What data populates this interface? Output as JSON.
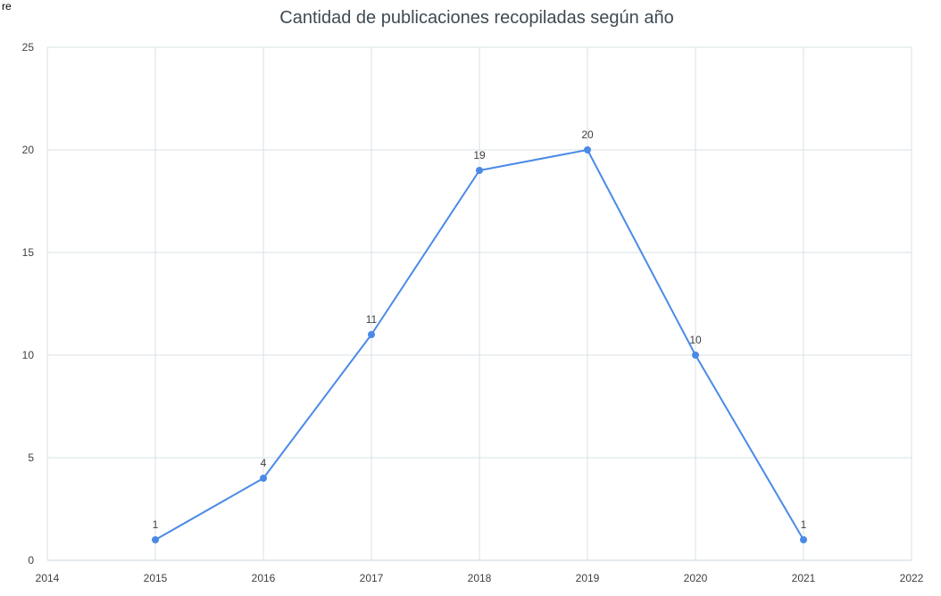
{
  "edge_text": "re",
  "chart_data": {
    "type": "line",
    "title": "Cantidad de publicaciones recopiladas según año",
    "xlabel": "",
    "ylabel": "",
    "xlim": [
      2014,
      2022
    ],
    "ylim": [
      0,
      25
    ],
    "x_ticks": [
      "2014",
      "2015",
      "2016",
      "2017",
      "2018",
      "2019",
      "2020",
      "2021",
      "2022"
    ],
    "y_ticks": [
      "0",
      "5",
      "10",
      "15",
      "20",
      "25"
    ],
    "grid": true,
    "legend": "none",
    "series": [
      {
        "x": [
          2015,
          2016,
          2017,
          2018,
          2019,
          2020,
          2021
        ],
        "values": [
          1,
          4,
          11,
          19,
          20,
          10,
          1
        ],
        "labels": [
          "1",
          "4",
          "11",
          "19",
          "20",
          "10",
          "1"
        ],
        "color": "#4a8ae6"
      }
    ],
    "colors": {
      "grid": "#d9e2e6",
      "axis": "#c8d3d8"
    }
  }
}
